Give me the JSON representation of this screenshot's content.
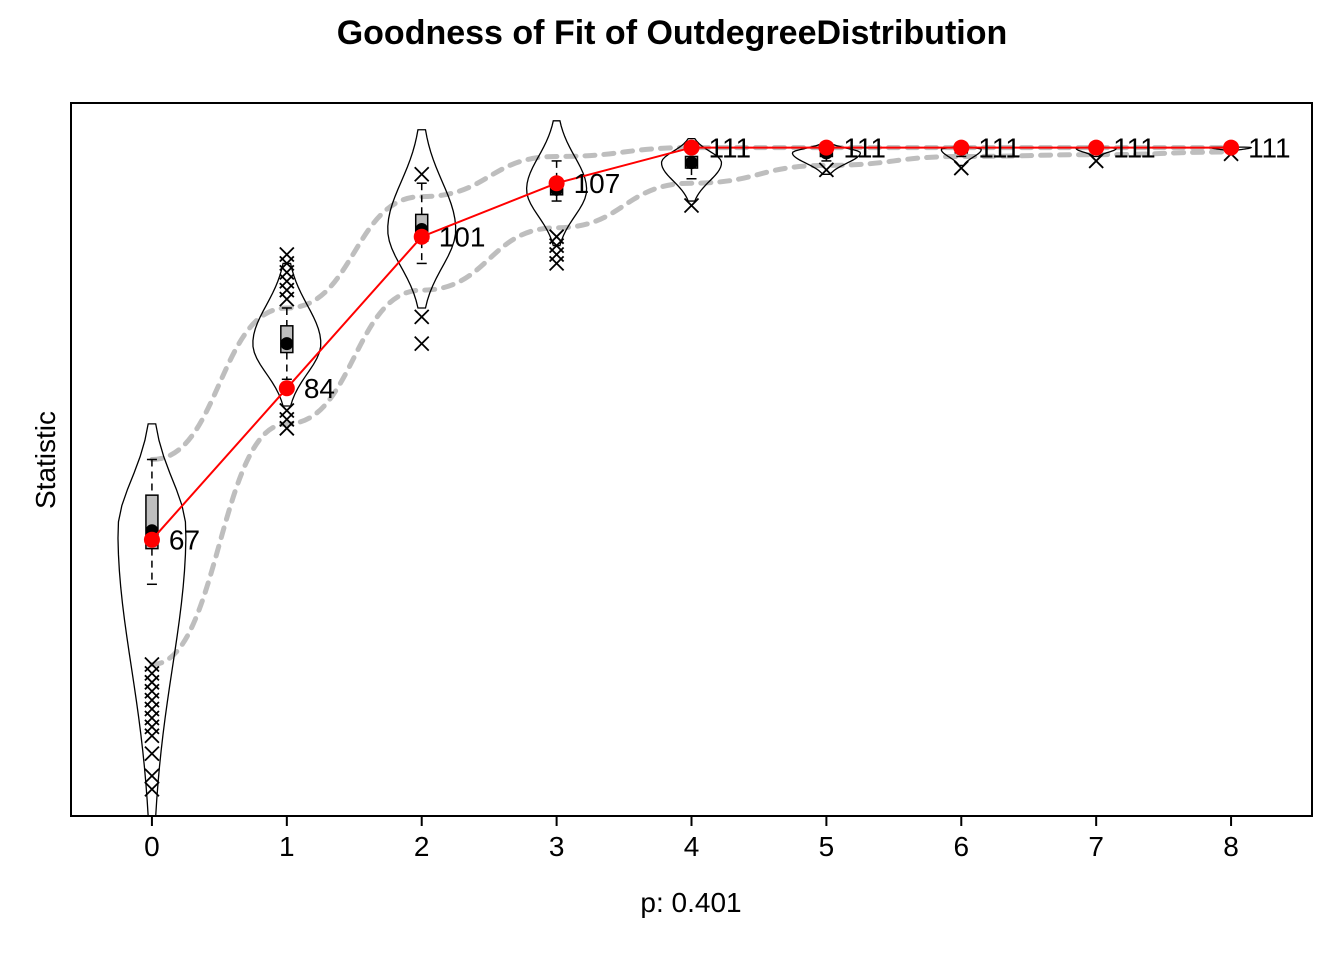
{
  "chart_data": {
    "type": "line",
    "title": "Goodness of Fit of OutdegreeDistribution",
    "xlabel": "p: 0.401",
    "ylabel": "Statistic",
    "x": [
      0,
      1,
      2,
      3,
      4,
      5,
      6,
      7,
      8
    ],
    "x_tick_labels": [
      "0",
      "1",
      "2",
      "3",
      "4",
      "5",
      "6",
      "7",
      "8"
    ],
    "xlim": [
      -0.6,
      8.6
    ],
    "ylim": [
      36,
      116
    ],
    "y_ticks_shown": false,
    "grid": false,
    "legend": "none",
    "observed": {
      "values": [
        67,
        84,
        101,
        107,
        111,
        111,
        111,
        111,
        111
      ],
      "labels": [
        "67",
        "84",
        "101",
        "107",
        "111",
        "111",
        "111",
        "111",
        "111"
      ],
      "color": "#ff0000"
    },
    "simulated_mean": [
      68,
      89,
      101.8,
      106.3,
      109.3,
      110.4,
      110.8,
      110.9,
      111
    ],
    "simulated_quartiles": [
      [
        66,
        72
      ],
      [
        88,
        91
      ],
      [
        100.5,
        103.5
      ],
      [
        105.7,
        107
      ],
      [
        108.7,
        110
      ],
      [
        110,
        110.6
      ],
      [
        110.4,
        110.8
      ],
      [
        110.7,
        111
      ],
      [
        110.9,
        111
      ]
    ],
    "simulated_whiskers": [
      [
        62,
        76
      ],
      [
        85,
        93
      ],
      [
        98,
        107
      ],
      [
        105,
        109.5
      ],
      [
        107.5,
        111
      ],
      [
        109.5,
        111
      ],
      [
        110,
        111
      ],
      [
        110.5,
        111
      ],
      [
        110.8,
        111
      ]
    ],
    "simulated_range": [
      [
        36,
        80
      ],
      [
        82,
        98
      ],
      [
        93,
        113
      ],
      [
        100,
        114
      ],
      [
        105,
        112
      ],
      [
        108,
        111.5
      ],
      [
        109,
        111.2
      ],
      [
        110,
        111.1
      ],
      [
        110.6,
        111.05
      ]
    ],
    "interval_band": {
      "upper": [
        76,
        93,
        105.5,
        110,
        111,
        111,
        111,
        111,
        111
      ],
      "lower": [
        53,
        80,
        95,
        102,
        107,
        109,
        110,
        110.2,
        110.5
      ],
      "color": "#bebebe"
    },
    "outliers": [
      [
        39,
        40.5,
        43,
        45,
        46,
        47,
        48,
        49,
        50,
        51,
        52,
        53
      ],
      [
        79.5,
        80.5,
        81.5,
        94,
        95,
        96,
        97,
        98,
        99
      ],
      [
        89,
        92,
        108
      ],
      [
        98,
        99,
        100,
        101
      ],
      [
        104.5
      ],
      [
        108.5
      ],
      [
        108.7
      ],
      [
        109.5
      ],
      [
        110.3
      ]
    ]
  }
}
